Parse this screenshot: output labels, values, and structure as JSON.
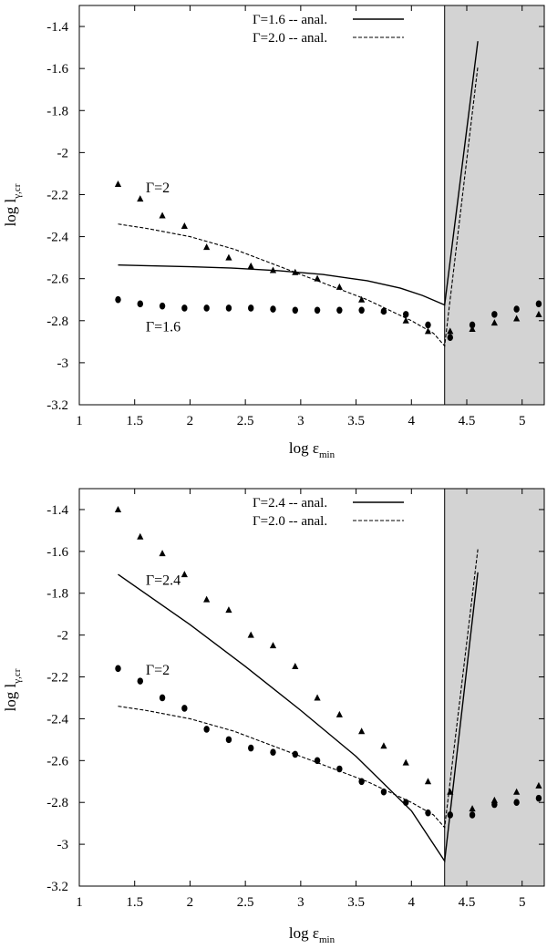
{
  "chart_data": [
    {
      "type": "line",
      "xlabel": {
        "main": "log ε",
        "sub": "min"
      },
      "ylabel": {
        "main": "log l",
        "sub": "γ,cr"
      },
      "xlim": [
        1,
        5.2
      ],
      "ylim": [
        -3.2,
        -1.3
      ],
      "x_ticks": [
        1,
        1.5,
        2,
        2.5,
        3,
        3.5,
        4,
        4.5,
        5
      ],
      "x_tick_labels": [
        "1",
        "1.5",
        "2",
        "2.5",
        "3",
        "3.5",
        "4",
        "4.5",
        "5"
      ],
      "y_ticks": [
        -1.4,
        -1.6,
        -1.8,
        -2,
        -2.2,
        -2.4,
        -2.6,
        -2.8,
        -3,
        -3.2
      ],
      "y_tick_labels": [
        "-1.4",
        "-1.6",
        "-1.8",
        "-2",
        "-2.2",
        "-2.4",
        "-2.6",
        "-2.8",
        "-3",
        "-3.2"
      ],
      "shaded_region_x": [
        4.3,
        5.2
      ],
      "legend_position": "top-right",
      "series": [
        {
          "name": "Γ=1.6 -- anal.",
          "style": "solid",
          "x": [
            1.35,
            1.6,
            2.0,
            2.4,
            2.8,
            3.2,
            3.6,
            3.9,
            4.1,
            4.3,
            4.6
          ],
          "y": [
            -2.535,
            -2.538,
            -2.543,
            -2.55,
            -2.562,
            -2.58,
            -2.61,
            -2.645,
            -2.68,
            -2.725,
            -1.47
          ]
        },
        {
          "name": "Γ=2.0 -- anal.",
          "style": "dashed",
          "x": [
            1.35,
            1.6,
            1.8,
            2.0,
            2.2,
            2.4,
            2.6,
            2.8,
            3.0,
            3.2,
            3.4,
            3.6,
            3.8,
            4.0,
            4.2,
            4.3,
            4.6
          ],
          "y": [
            -2.34,
            -2.36,
            -2.38,
            -2.4,
            -2.43,
            -2.46,
            -2.5,
            -2.54,
            -2.58,
            -2.62,
            -2.66,
            -2.7,
            -2.75,
            -2.8,
            -2.86,
            -2.92,
            -1.59
          ]
        },
        {
          "marker": "triangle",
          "x": [
            1.35,
            1.55,
            1.75,
            1.95,
            2.15,
            2.35,
            2.55,
            2.75,
            2.95,
            3.15,
            3.35,
            3.55,
            3.75,
            3.95,
            4.15,
            4.35,
            4.55,
            4.75,
            4.95,
            5.15
          ],
          "y": [
            -2.15,
            -2.22,
            -2.3,
            -2.35,
            -2.45,
            -2.5,
            -2.54,
            -2.56,
            -2.57,
            -2.6,
            -2.64,
            -2.7,
            -2.75,
            -2.8,
            -2.85,
            -2.85,
            -2.84,
            -2.81,
            -2.79,
            -2.77
          ]
        },
        {
          "marker": "circle",
          "x": [
            1.35,
            1.55,
            1.75,
            1.95,
            2.15,
            2.35,
            2.55,
            2.75,
            2.95,
            3.15,
            3.35,
            3.55,
            3.75,
            3.95,
            4.15,
            4.35,
            4.55,
            4.75,
            4.95,
            5.15
          ],
          "y": [
            -2.7,
            -2.72,
            -2.73,
            -2.74,
            -2.74,
            -2.74,
            -2.74,
            -2.745,
            -2.75,
            -2.75,
            -2.75,
            -2.75,
            -2.755,
            -2.77,
            -2.82,
            -2.88,
            -2.82,
            -2.77,
            -2.745,
            -2.72
          ]
        }
      ],
      "annotations": [
        {
          "text": "Γ=2",
          "x": 1.6,
          "y": -2.19
        },
        {
          "text": "Γ=1.6",
          "x": 1.6,
          "y": -2.85
        }
      ]
    },
    {
      "type": "line",
      "xlabel": {
        "main": "log ε",
        "sub": "min"
      },
      "ylabel": {
        "main": "log l",
        "sub": "γ,cr"
      },
      "xlim": [
        1,
        5.2
      ],
      "ylim": [
        -3.2,
        -1.3
      ],
      "x_ticks": [
        1,
        1.5,
        2,
        2.5,
        3,
        3.5,
        4,
        4.5,
        5
      ],
      "x_tick_labels": [
        "1",
        "1.5",
        "2",
        "2.5",
        "3",
        "3.5",
        "4",
        "4.5",
        "5"
      ],
      "y_ticks": [
        -1.4,
        -1.6,
        -1.8,
        -2,
        -2.2,
        -2.4,
        -2.6,
        -2.8,
        -3,
        -3.2
      ],
      "y_tick_labels": [
        "-1.4",
        "-1.6",
        "-1.8",
        "-2",
        "-2.2",
        "-2.4",
        "-2.6",
        "-2.8",
        "-3",
        "-3.2"
      ],
      "shaded_region_x": [
        4.3,
        5.2
      ],
      "legend_position": "top-right",
      "series": [
        {
          "name": "Γ=2.4 -- anal.",
          "style": "solid",
          "x": [
            1.35,
            2.0,
            2.5,
            3.0,
            3.5,
            4.0,
            4.3,
            4.6
          ],
          "y": [
            -1.71,
            -1.95,
            -2.15,
            -2.36,
            -2.58,
            -2.84,
            -3.08,
            -1.7
          ]
        },
        {
          "name": "Γ=2.0 -- anal.",
          "style": "dashed",
          "x": [
            1.35,
            1.6,
            1.8,
            2.0,
            2.2,
            2.4,
            2.6,
            2.8,
            3.0,
            3.2,
            3.4,
            3.6,
            3.8,
            4.0,
            4.2,
            4.3,
            4.6
          ],
          "y": [
            -2.34,
            -2.36,
            -2.38,
            -2.4,
            -2.43,
            -2.46,
            -2.5,
            -2.54,
            -2.58,
            -2.62,
            -2.66,
            -2.7,
            -2.75,
            -2.8,
            -2.86,
            -2.92,
            -1.59
          ]
        },
        {
          "marker": "triangle",
          "x": [
            1.35,
            1.55,
            1.75,
            1.95,
            2.15,
            2.35,
            2.55,
            2.75,
            2.95,
            3.15,
            3.35,
            3.55,
            3.75,
            3.95,
            4.15,
            4.35,
            4.55,
            4.75,
            4.95,
            5.15
          ],
          "y": [
            -1.4,
            -1.53,
            -1.61,
            -1.71,
            -1.83,
            -1.88,
            -2.0,
            -2.05,
            -2.15,
            -2.3,
            -2.38,
            -2.46,
            -2.53,
            -2.61,
            -2.7,
            -2.75,
            -2.83,
            -2.79,
            -2.75,
            -2.72
          ]
        },
        {
          "marker": "circle",
          "x": [
            1.35,
            1.55,
            1.75,
            1.95,
            2.15,
            2.35,
            2.55,
            2.75,
            2.95,
            3.15,
            3.35,
            3.55,
            3.75,
            3.95,
            4.15,
            4.35,
            4.55,
            4.75,
            4.95,
            5.15
          ],
          "y": [
            -2.16,
            -2.22,
            -2.3,
            -2.35,
            -2.45,
            -2.5,
            -2.54,
            -2.56,
            -2.57,
            -2.6,
            -2.64,
            -2.7,
            -2.75,
            -2.8,
            -2.85,
            -2.86,
            -2.86,
            -2.81,
            -2.8,
            -2.78
          ]
        }
      ],
      "annotations": [
        {
          "text": "Γ=2.4",
          "x": 1.6,
          "y": -1.76
        },
        {
          "text": "Γ=2",
          "x": 1.6,
          "y": -2.19
        }
      ]
    }
  ]
}
